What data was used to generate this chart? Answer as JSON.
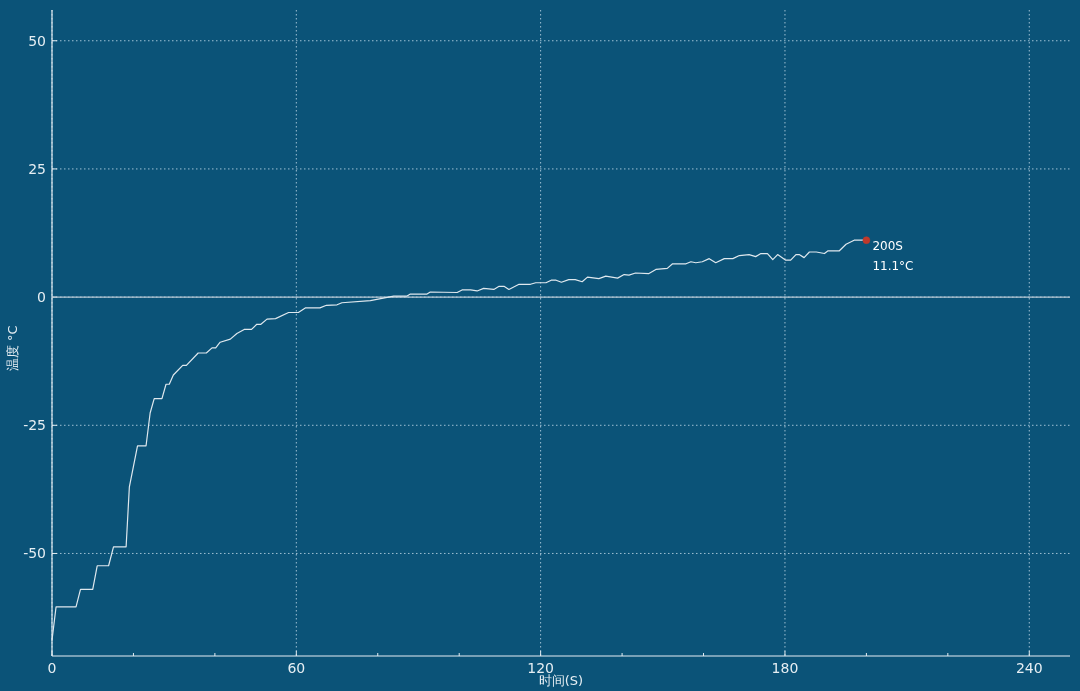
{
  "chart_data": {
    "type": "line",
    "xlabel": "时间(S)",
    "ylabel": "温度 °C",
    "xlim": [
      0,
      250
    ],
    "xticks": [
      0,
      {
        "value": 20,
        "label": null
      },
      {
        "value": 40,
        "label": null
      },
      60,
      {
        "value": 80,
        "label": null
      },
      {
        "value": 100,
        "label": null
      },
      120,
      {
        "value": 140,
        "label": null
      },
      {
        "value": 160,
        "label": null
      },
      180,
      {
        "value": 200,
        "label": null
      },
      {
        "value": 220,
        "label": null
      },
      240
    ],
    "ylim": [
      -70,
      56
    ],
    "yticks": [
      -50,
      -25,
      0,
      25,
      50
    ],
    "grid": true,
    "ref_lines": [
      {
        "axis": "y",
        "value": 0,
        "color": "#b8c8d4",
        "line_style": "solid"
      }
    ],
    "annotations": [
      {
        "text": "200S\n11.1°C",
        "x": 200,
        "y": 11.1
      }
    ],
    "series": [
      {
        "color": "#dfe8ee",
        "x": [
          0,
          1,
          5.9,
          7,
          10,
          11.1,
          13.9,
          15.1,
          18.2,
          19,
          21,
          23.1,
          24.1,
          25.1,
          27,
          28,
          28.8,
          29.8,
          32.1,
          33,
          35.9,
          37.9,
          39.3,
          40.2,
          41.3,
          43.8,
          45.4,
          47.2,
          49,
          50.3,
          51.3,
          52.8,
          54.9,
          58.1,
          60.5,
          62.2,
          65.8,
          67.4,
          70,
          71.2,
          78.2,
          80.7,
          83.9,
          87.2,
          88,
          92.1,
          92.9,
          99.5,
          100.7,
          102.8,
          104.4,
          106,
          108.5,
          109.8,
          111,
          112.2,
          114.7,
          117.5,
          118.8,
          121.3,
          122.6,
          123.8,
          125.1,
          126.9,
          128.5,
          130.2,
          131.5,
          134.3,
          136,
          138.9,
          140.5,
          141.7,
          143.3,
          146.6,
          148.3,
          151.1,
          152.4,
          155.7,
          156.9,
          158.1,
          159.7,
          161.4,
          163,
          165.1,
          167.2,
          168.8,
          171.2,
          172.8,
          174.1,
          175.7,
          177,
          178.2,
          180.2,
          181.4,
          182.7,
          183.5,
          184.7,
          186,
          187.7,
          189.7,
          190.5,
          193.3,
          195,
          197,
          198.3,
          200
        ],
        "values": [
          -66.9,
          -60.4,
          -60.4,
          -57,
          -57,
          -52.4,
          -52.4,
          -48.7,
          -48.7,
          -37,
          -29,
          -29,
          -22.6,
          -19.8,
          -19.8,
          -17,
          -17,
          -15.2,
          -13.3,
          -13.3,
          -10.9,
          -10.9,
          -9.9,
          -9.9,
          -8.8,
          -8.2,
          -7.1,
          -6.3,
          -6.3,
          -5.3,
          -5.3,
          -4.3,
          -4.2,
          -3,
          -3,
          -2.1,
          -2.1,
          -1.6,
          -1.5,
          -1.1,
          -0.7,
          -0.3,
          0.2,
          0.2,
          0.6,
          0.6,
          1,
          0.9,
          1.4,
          1.4,
          1.2,
          1.7,
          1.5,
          2.1,
          2.1,
          1.5,
          2.5,
          2.5,
          2.8,
          2.8,
          3.3,
          3.3,
          2.9,
          3.4,
          3.4,
          3,
          3.9,
          3.6,
          4.1,
          3.7,
          4.4,
          4.3,
          4.7,
          4.6,
          5.4,
          5.6,
          6.5,
          6.5,
          6.9,
          6.7,
          6.9,
          7.5,
          6.7,
          7.5,
          7.5,
          8.1,
          8.3,
          7.9,
          8.5,
          8.5,
          7.3,
          8.3,
          7.2,
          7.2,
          8.3,
          8.3,
          7.7,
          8.8,
          8.8,
          8.5,
          9,
          9,
          10.3,
          11.1,
          11.1,
          11.1
        ]
      },
      {
        "type": "scatter",
        "color": "#c0392b",
        "x": [
          200
        ],
        "values": [
          11.1
        ]
      }
    ]
  }
}
